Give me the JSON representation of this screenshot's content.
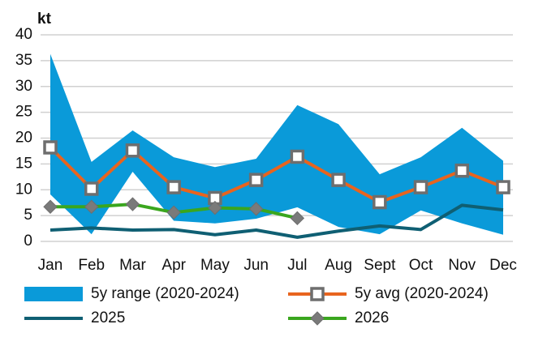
{
  "chart_data": {
    "type": "line",
    "ylabel": "kt",
    "categories": [
      "Jan",
      "Feb",
      "Mar",
      "Apr",
      "May",
      "Jun",
      "Jul",
      "Aug",
      "Sept",
      "Oct",
      "Nov",
      "Dec"
    ],
    "ylim": [
      0,
      40
    ],
    "yticks": [
      0,
      5,
      10,
      15,
      20,
      25,
      30,
      35,
      40
    ],
    "grid": true,
    "series": [
      {
        "name": "5y range (2020-2024)",
        "color": "#0a9ad9",
        "kind": "band",
        "values": [
          36.3,
          15.4,
          21.5,
          16.3,
          14.4,
          16,
          26.4,
          22.7,
          13,
          16.3,
          22,
          15.6
        ],
        "lower": [
          9.1,
          1.4,
          13.5,
          4,
          3.5,
          4.4,
          6.6,
          2.8,
          1.4,
          6,
          3.5,
          1.3
        ]
      },
      {
        "name": "5y avg (2020-2024)",
        "color": "#e8641e",
        "marker": "square",
        "values": [
          18.2,
          10.2,
          17.6,
          10.5,
          8.4,
          11.9,
          16.4,
          11.9,
          7.6,
          10.5,
          13.7,
          10.5
        ]
      },
      {
        "name": "2025",
        "color": "#0f5f73",
        "values": [
          2.2,
          2.6,
          2.2,
          2.3,
          1.3,
          2.2,
          0.8,
          2,
          3,
          2.3,
          7,
          6.1
        ]
      },
      {
        "name": "2026",
        "color": "#3aa61e",
        "marker": "diamond",
        "values": [
          6.7,
          6.7,
          7.2,
          5.6,
          6.5,
          6.3,
          4.5,
          null,
          null,
          null,
          null,
          null
        ]
      }
    ]
  }
}
